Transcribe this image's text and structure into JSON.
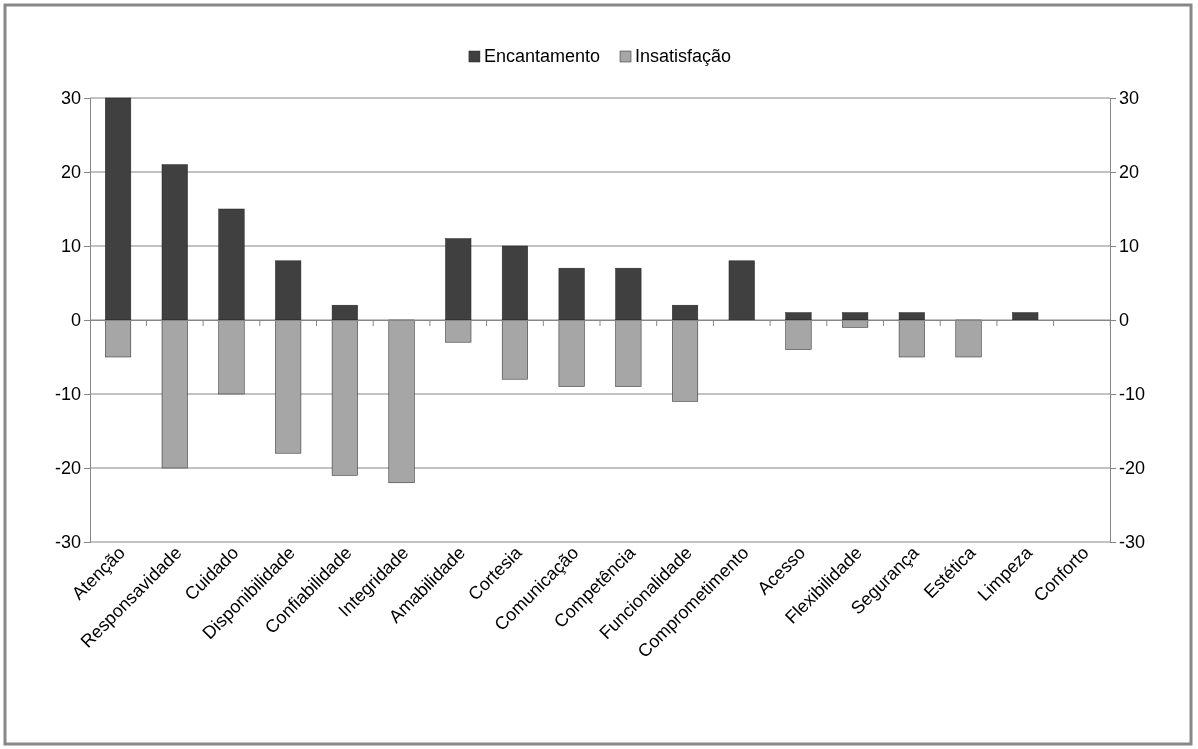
{
  "chart_data": {
    "type": "bar",
    "categories": [
      "Atenção",
      "Responsavidade",
      "Cuidado",
      "Disponibilidade",
      "Confiabilidade",
      "Integridade",
      "Amabilidade",
      "Cortesia",
      "Comunicação",
      "Competência",
      "Funcionalidade",
      "Comprometimento",
      "Acesso",
      "Flexibilidade",
      "Segurança",
      "Estética",
      "Limpeza",
      "Conforto"
    ],
    "series": [
      {
        "name": "Encantamento",
        "color": "#404040",
        "values": [
          30,
          21,
          15,
          8,
          2,
          0,
          11,
          10,
          7,
          7,
          2,
          8,
          1,
          1,
          1,
          0,
          1,
          0
        ]
      },
      {
        "name": "Insatisfação",
        "color": "#a6a6a6",
        "values": [
          -5,
          -20,
          -10,
          -18,
          -21,
          -22,
          -3,
          -8,
          -9,
          -9,
          -11,
          0,
          -4,
          -1,
          -5,
          -5,
          0,
          0
        ]
      }
    ],
    "ylim": [
      -30,
      30
    ],
    "yticks": [
      -30,
      -20,
      -10,
      0,
      10,
      20,
      30
    ],
    "y2lim": [
      -30,
      30
    ],
    "y2ticks": [
      -30,
      -20,
      -10,
      0,
      10,
      20,
      30
    ],
    "stacked": true,
    "grid": "y",
    "legend": "top"
  }
}
